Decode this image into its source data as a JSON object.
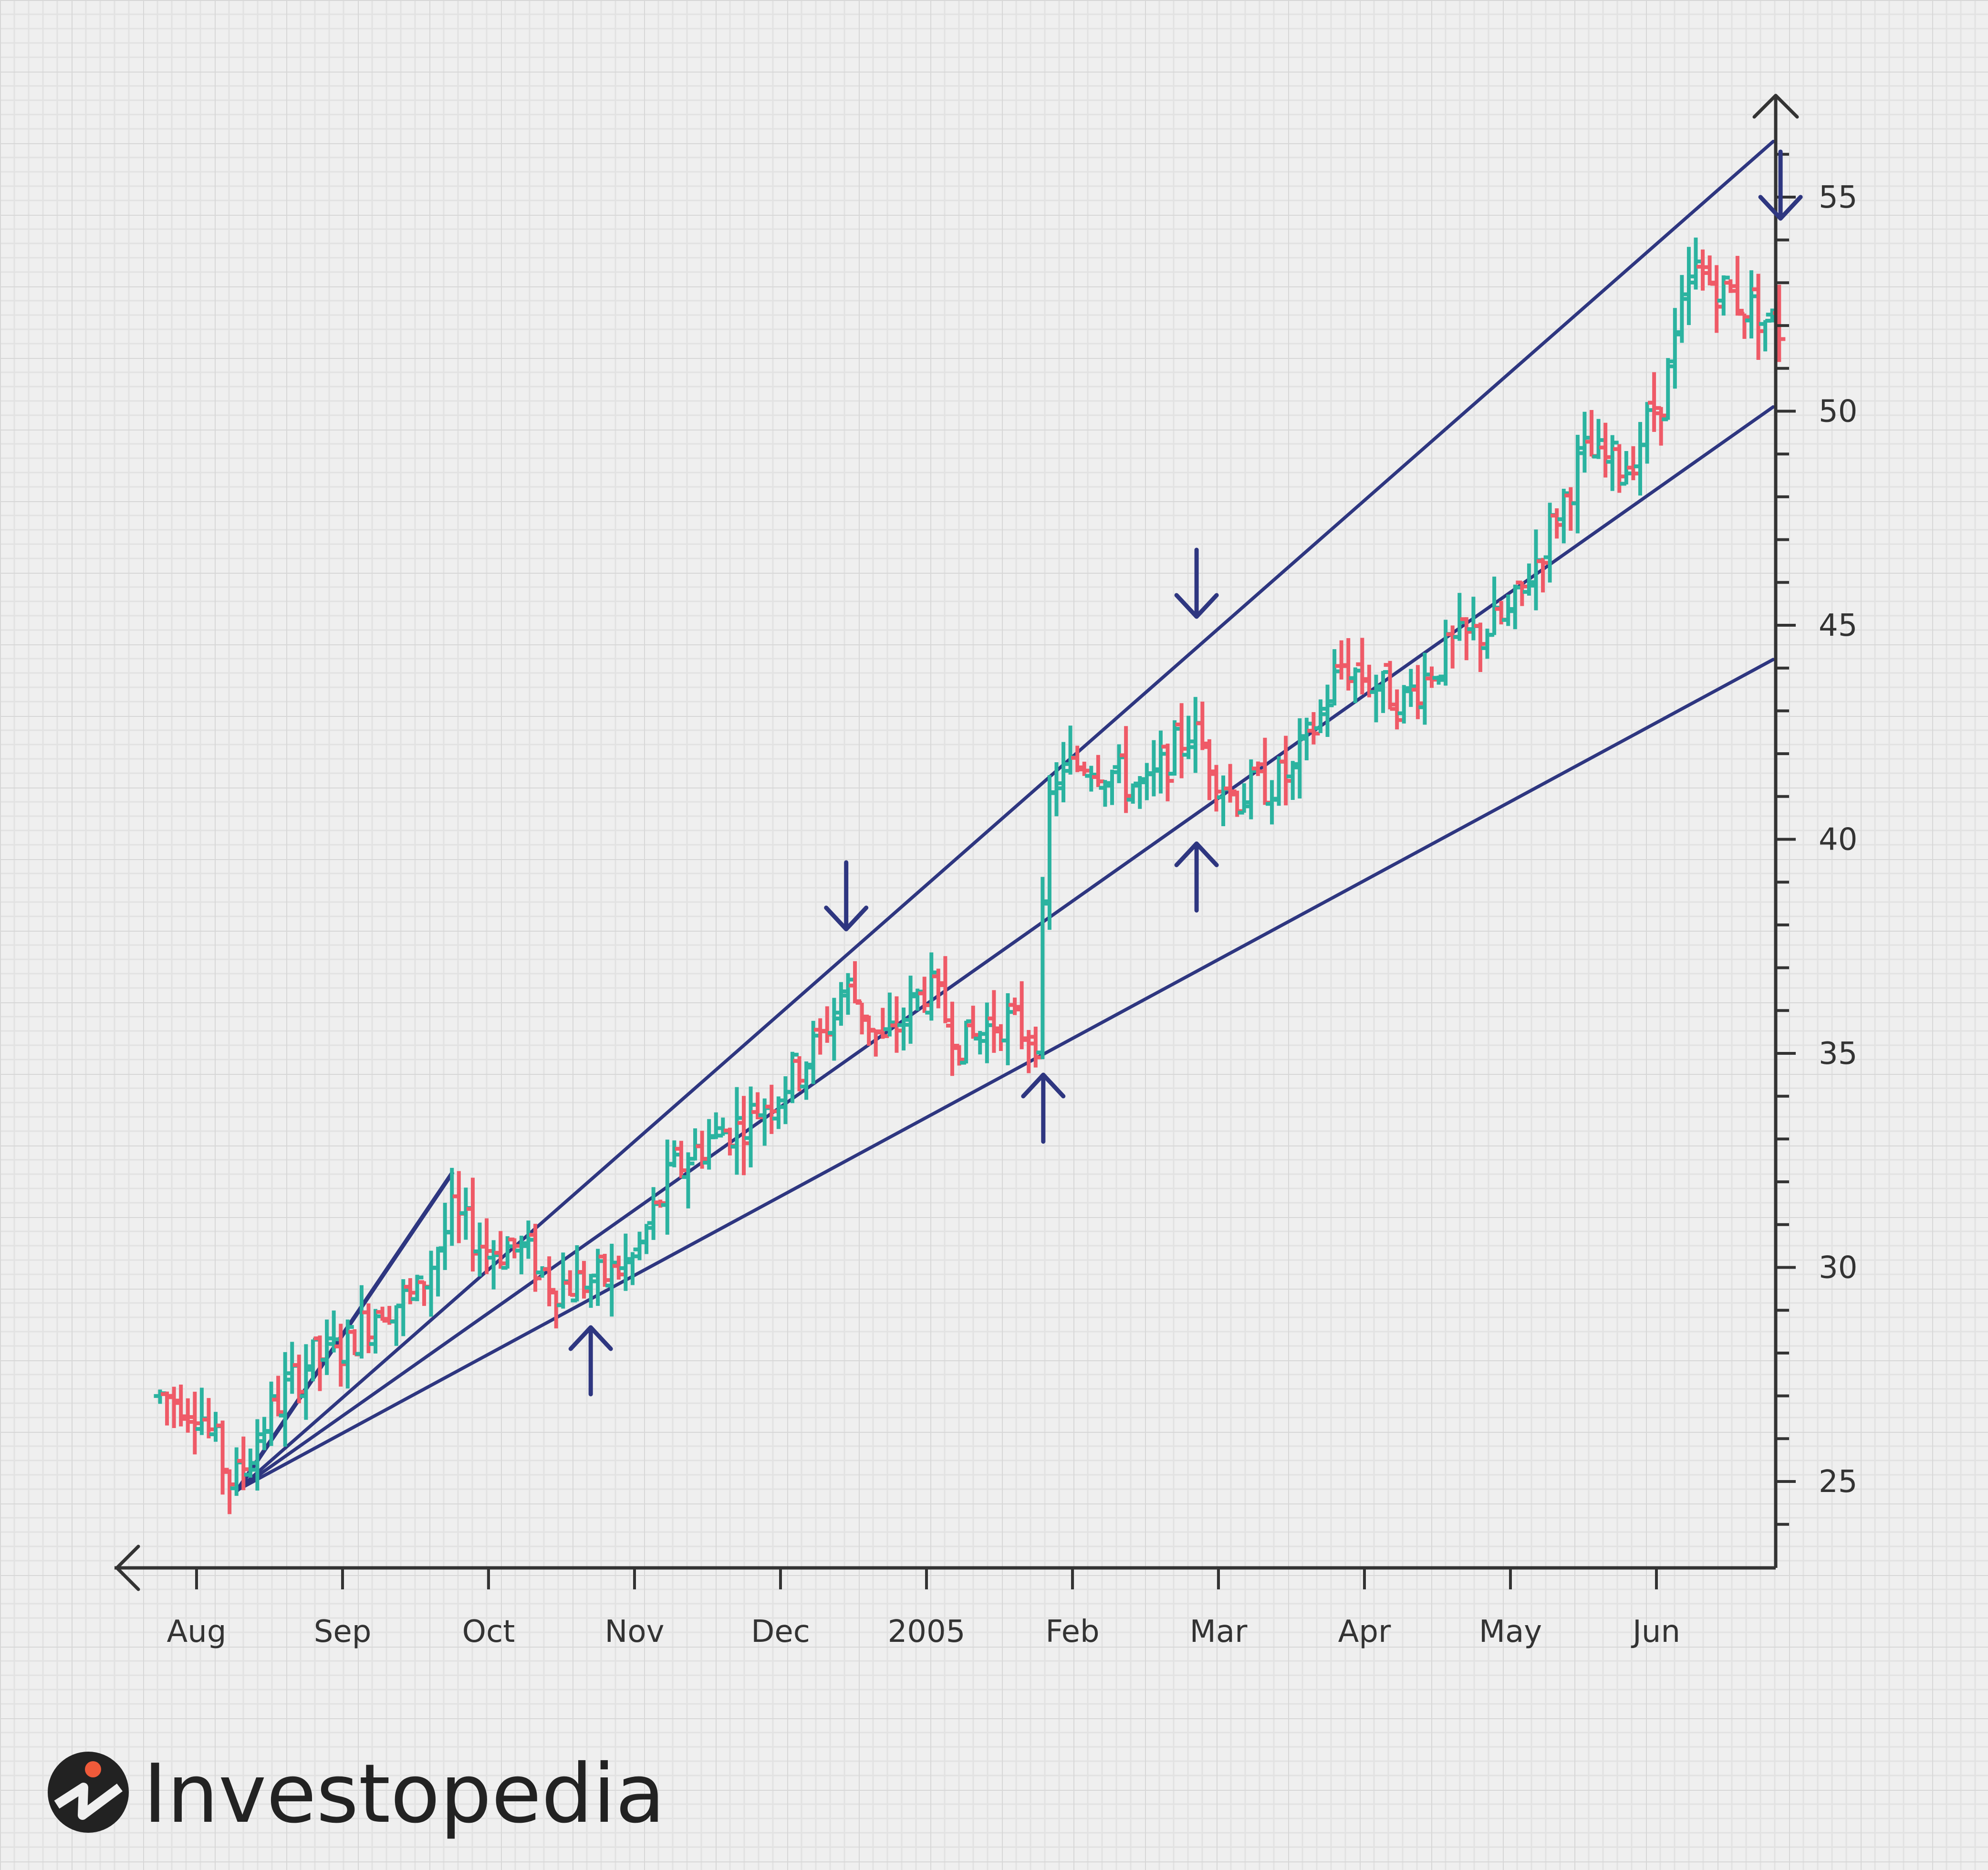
{
  "chart_data": {
    "type": "bar",
    "subtype": "ohlc-bar-chart-with-fan-lines",
    "title": "",
    "xlabel": "",
    "ylabel": "",
    "ylim": [
      23,
      57
    ],
    "yticks": [
      25,
      30,
      35,
      40,
      45,
      50,
      55
    ],
    "y_axis_position": "right",
    "x_axis_labels": [
      "Aug",
      "Sep",
      "Oct",
      "Nov",
      "Dec",
      "2005",
      "Feb",
      "Mar",
      "Apr",
      "May",
      "Jun"
    ],
    "grid": true,
    "colors": {
      "up": "#2bb3a0",
      "down": "#ef5a67",
      "trendline": "#2e3680",
      "axis": "#333333",
      "background": "#efefef"
    },
    "fan_lines": [
      {
        "from": {
          "month": 0.28,
          "value": 24.8
        },
        "to": {
          "month": 1.75,
          "value": 32.2
        }
      },
      {
        "from": {
          "month": 0.28,
          "value": 24.8
        },
        "to": {
          "month": 10.8,
          "value": 56.3
        }
      },
      {
        "from": {
          "month": 0.28,
          "value": 24.8
        },
        "to": {
          "month": 10.8,
          "value": 50.1
        }
      },
      {
        "from": {
          "month": 0.28,
          "value": 24.8
        },
        "to": {
          "month": 10.8,
          "value": 44.2
        }
      }
    ],
    "arrows": [
      {
        "direction": "up",
        "month": 2.7,
        "value": 28.6
      },
      {
        "direction": "down",
        "month": 4.45,
        "value": 37.9
      },
      {
        "direction": "up",
        "month": 5.8,
        "value": 34.5
      },
      {
        "direction": "down",
        "month": 6.85,
        "value": 45.2
      },
      {
        "direction": "up",
        "month": 6.85,
        "value": 39.9
      },
      {
        "direction": "down",
        "month": 10.85,
        "value": 54.5
      }
    ],
    "anchors": [
      {
        "month": -0.25,
        "value": 27.0
      },
      {
        "month": 0.0,
        "value": 26.8
      },
      {
        "month": 0.25,
        "value": 24.9
      },
      {
        "month": 0.5,
        "value": 26.6
      },
      {
        "month": 0.75,
        "value": 27.8
      },
      {
        "month": 1.0,
        "value": 28.1
      },
      {
        "month": 1.25,
        "value": 29.1
      },
      {
        "month": 1.5,
        "value": 29.3
      },
      {
        "month": 1.75,
        "value": 31.2
      },
      {
        "month": 2.0,
        "value": 30.4
      },
      {
        "month": 2.2,
        "value": 30.5
      },
      {
        "month": 2.45,
        "value": 29.6
      },
      {
        "month": 2.75,
        "value": 29.7
      },
      {
        "month": 3.0,
        "value": 30.2
      },
      {
        "month": 3.25,
        "value": 32.2
      },
      {
        "month": 3.5,
        "value": 33.0
      },
      {
        "month": 3.75,
        "value": 33.4
      },
      {
        "month": 4.0,
        "value": 34.2
      },
      {
        "month": 4.25,
        "value": 35.2
      },
      {
        "month": 4.45,
        "value": 36.6
      },
      {
        "month": 4.7,
        "value": 35.2
      },
      {
        "month": 5.0,
        "value": 36.6
      },
      {
        "month": 5.25,
        "value": 35.2
      },
      {
        "month": 5.5,
        "value": 35.8
      },
      {
        "month": 5.75,
        "value": 35.4
      },
      {
        "month": 5.85,
        "value": 41.3
      },
      {
        "month": 6.1,
        "value": 41.9
      },
      {
        "month": 6.5,
        "value": 41.1
      },
      {
        "month": 6.8,
        "value": 42.6
      },
      {
        "month": 7.1,
        "value": 41.0
      },
      {
        "month": 7.5,
        "value": 41.5
      },
      {
        "month": 7.85,
        "value": 44.1
      },
      {
        "month": 8.25,
        "value": 43.2
      },
      {
        "month": 8.6,
        "value": 44.5
      },
      {
        "month": 9.0,
        "value": 45.2
      },
      {
        "month": 9.5,
        "value": 49.0
      },
      {
        "month": 9.8,
        "value": 48.7
      },
      {
        "month": 10.05,
        "value": 50.5
      },
      {
        "month": 10.25,
        "value": 53.3
      },
      {
        "month": 10.6,
        "value": 52.5
      },
      {
        "month": 10.85,
        "value": 51.9
      }
    ]
  },
  "brand": {
    "name": "Investopedia"
  }
}
